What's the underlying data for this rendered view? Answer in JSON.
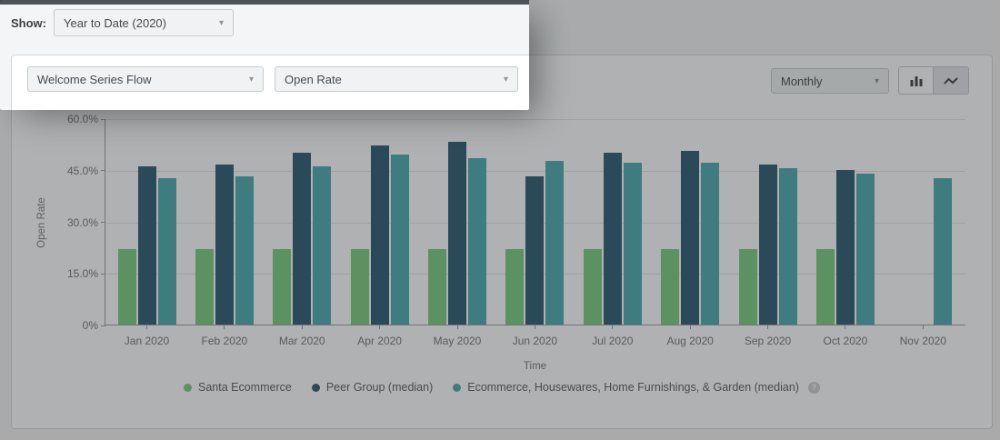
{
  "filters": {
    "show_label": "Show:",
    "show_value": "Year to Date (2020)"
  },
  "controls": {
    "flow_select": "Welcome Series Flow",
    "metric_select": "Open Rate",
    "interval_select": "Monthly"
  },
  "icons": {
    "caret": "▾",
    "help": "?"
  },
  "chart_data": {
    "type": "bar",
    "title": "",
    "ylabel": "Open Rate",
    "xlabel": "Time",
    "unit": "%",
    "ylim": [
      0,
      60
    ],
    "yticks": [
      "60.0%",
      "45.0%",
      "30.0%",
      "15.0%",
      "0%"
    ],
    "grid": true,
    "legend_position": "bottom",
    "categories": [
      "Jan 2020",
      "Feb 2020",
      "Mar 2020",
      "Apr 2020",
      "May 2020",
      "Jun 2020",
      "Jul 2020",
      "Aug 2020",
      "Sep 2020",
      "Oct 2020",
      "Nov 2020"
    ],
    "series": [
      {
        "name": "Santa Ecommerce",
        "color": "#7CCD80",
        "values": [
          22,
          22,
          22,
          22,
          22,
          22,
          22,
          22,
          22,
          22,
          null
        ]
      },
      {
        "name": "Peer Group (median)",
        "color": "#2F5F74",
        "values": [
          46,
          46.5,
          50,
          52,
          53,
          43,
          50,
          50.5,
          46.5,
          45,
          null
        ]
      },
      {
        "name": "Ecommerce, Housewares, Home Furnishings, & Garden (median)",
        "color": "#4EADAF",
        "values": [
          42.5,
          43,
          46,
          49.5,
          48.5,
          47.5,
          47,
          47,
          45.5,
          44,
          42.5
        ]
      }
    ]
  }
}
